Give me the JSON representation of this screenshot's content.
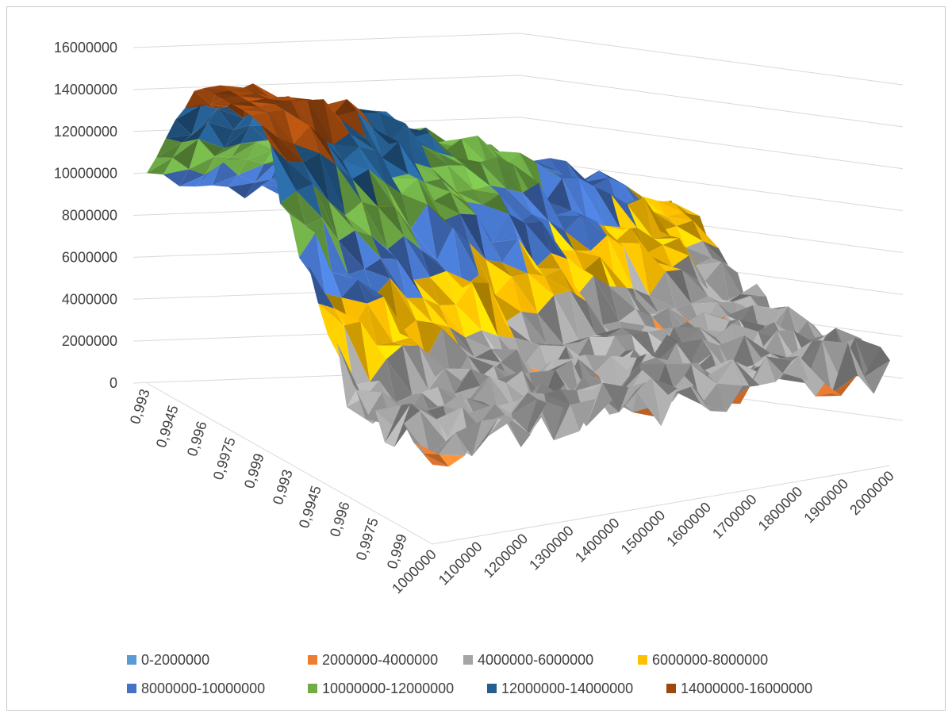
{
  "chart_data": {
    "type": "surface",
    "title": "",
    "z_axis": {
      "range": [
        0,
        16000000
      ],
      "ticks": [
        "0",
        "2000000",
        "4000000",
        "6000000",
        "8000000",
        "10000000",
        "12000000",
        "14000000",
        "16000000"
      ]
    },
    "depth_axis": {
      "ticks": [
        "0,993",
        "0,9945",
        "0,996",
        "0,9975",
        "0,999",
        "0,993",
        "0,9945",
        "0,996",
        "0,9975",
        "0,999"
      ]
    },
    "x_axis": {
      "ticks": [
        "1000000",
        "1100000",
        "1200000",
        "1300000",
        "1400000",
        "1500000",
        "1600000",
        "1700000",
        "1800000",
        "1900000",
        "2000000"
      ]
    },
    "grid": true,
    "legend_position": "bottom",
    "legend": [
      {
        "label": "0-2000000",
        "color": "#5b9bd5"
      },
      {
        "label": "2000000-4000000",
        "color": "#ed7d31"
      },
      {
        "label": "4000000-6000000",
        "color": "#a5a5a5"
      },
      {
        "label": "6000000-8000000",
        "color": "#ffc000"
      },
      {
        "label": "8000000-10000000",
        "color": "#4472c4"
      },
      {
        "label": "10000000-12000000",
        "color": "#70ad47"
      },
      {
        "label": "12000000-14000000",
        "color": "#255e91"
      },
      {
        "label": "14000000-16000000",
        "color": "#9e480e"
      }
    ]
  }
}
